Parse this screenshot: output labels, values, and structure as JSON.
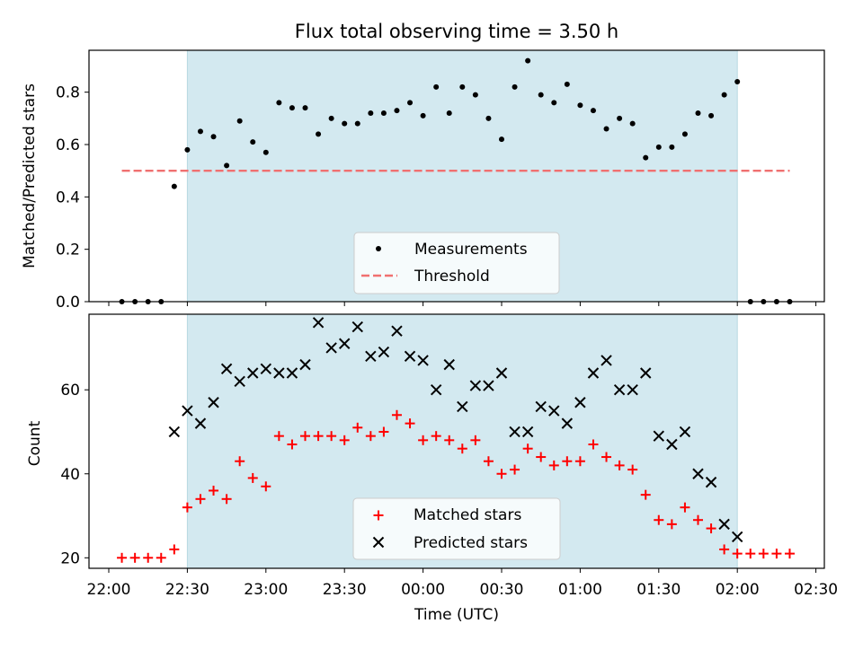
{
  "chart_data": [
    {
      "type": "scatter",
      "title": "Flux total observing time = 3.50 h",
      "xlabel": "",
      "ylabel": "Matched/Predicted stars",
      "ylim": [
        0,
        0.96
      ],
      "yticks": [
        "0.0",
        "0.2",
        "0.4",
        "0.6",
        "0.8"
      ],
      "shaded_span": [
        "22:30",
        "02:00"
      ],
      "shade_color": "#d3e9f0",
      "legend_position": "lower center",
      "series": [
        {
          "name": "Measurements",
          "marker": "dot",
          "color": "#000000",
          "x": [
            "22:05",
            "22:10",
            "22:15",
            "22:20",
            "22:25",
            "22:30",
            "22:35",
            "22:40",
            "22:45",
            "22:50",
            "22:55",
            "23:00",
            "23:05",
            "23:10",
            "23:15",
            "23:20",
            "23:25",
            "23:30",
            "23:35",
            "23:40",
            "23:45",
            "23:50",
            "23:55",
            "00:00",
            "00:05",
            "00:10",
            "00:15",
            "00:20",
            "00:25",
            "00:30",
            "00:35",
            "00:40",
            "00:45",
            "00:50",
            "00:55",
            "01:00",
            "01:05",
            "01:10",
            "01:15",
            "01:20",
            "01:25",
            "01:30",
            "01:35",
            "01:40",
            "01:45",
            "01:50",
            "01:55",
            "02:00",
            "02:05",
            "02:10",
            "02:15",
            "02:20"
          ],
          "y": [
            0,
            0,
            0,
            0,
            0.44,
            0.58,
            0.65,
            0.63,
            0.52,
            0.69,
            0.61,
            0.57,
            0.76,
            0.74,
            0.74,
            0.64,
            0.7,
            0.68,
            0.68,
            0.72,
            0.72,
            0.73,
            0.76,
            0.71,
            0.82,
            0.72,
            0.82,
            0.79,
            0.7,
            0.62,
            0.82,
            0.92,
            0.79,
            0.76,
            0.83,
            0.75,
            0.73,
            0.66,
            0.7,
            0.68,
            0.55,
            0.59,
            0.59,
            0.64,
            0.72,
            0.71,
            0.79,
            0.84,
            0,
            0,
            0,
            0
          ]
        },
        {
          "name": "Threshold",
          "style": "dashed",
          "color": "#f07070",
          "x": [
            "22:05",
            "02:20"
          ],
          "y": [
            0.5,
            0.5
          ]
        }
      ]
    },
    {
      "type": "scatter",
      "title": "",
      "xlabel": "Time (UTC)",
      "ylabel": "Count",
      "ylim": [
        17.5,
        78
      ],
      "yticks": [
        "20",
        "40",
        "60"
      ],
      "xticks": [
        "22:00",
        "22:30",
        "23:00",
        "23:30",
        "00:00",
        "00:30",
        "01:00",
        "01:30",
        "02:00",
        "02:30"
      ],
      "shaded_span": [
        "22:30",
        "02:00"
      ],
      "shade_color": "#d3e9f0",
      "legend_position": "lower center",
      "series": [
        {
          "name": "Matched stars",
          "marker": "plus",
          "color": "#ff0000",
          "x": [
            "22:05",
            "22:10",
            "22:15",
            "22:20",
            "22:25",
            "22:30",
            "22:35",
            "22:40",
            "22:45",
            "22:50",
            "22:55",
            "23:00",
            "23:05",
            "23:10",
            "23:15",
            "23:20",
            "23:25",
            "23:30",
            "23:35",
            "23:40",
            "23:45",
            "23:50",
            "23:55",
            "00:00",
            "00:05",
            "00:10",
            "00:15",
            "00:20",
            "00:25",
            "00:30",
            "00:35",
            "00:40",
            "00:45",
            "00:50",
            "00:55",
            "01:00",
            "01:05",
            "01:10",
            "01:15",
            "01:20",
            "01:25",
            "01:30",
            "01:35",
            "01:40",
            "01:45",
            "01:50",
            "01:55",
            "02:00",
            "02:05",
            "02:10",
            "02:15",
            "02:20"
          ],
          "y": [
            20,
            20,
            20,
            20,
            22,
            32,
            34,
            36,
            34,
            43,
            39,
            37,
            49,
            47,
            49,
            49,
            49,
            48,
            51,
            49,
            50,
            54,
            52,
            48,
            49,
            48,
            46,
            48,
            43,
            40,
            41,
            46,
            44,
            42,
            43,
            43,
            47,
            44,
            42,
            41,
            35,
            29,
            28,
            32,
            29,
            27,
            22,
            21,
            21,
            21,
            21,
            21
          ]
        },
        {
          "name": "Predicted stars",
          "marker": "x",
          "color": "#000000",
          "x": [
            "22:25",
            "22:30",
            "22:35",
            "22:40",
            "22:45",
            "22:50",
            "22:55",
            "23:00",
            "23:05",
            "23:10",
            "23:15",
            "23:20",
            "23:25",
            "23:30",
            "23:35",
            "23:40",
            "23:45",
            "23:50",
            "23:55",
            "00:00",
            "00:05",
            "00:10",
            "00:15",
            "00:20",
            "00:25",
            "00:30",
            "00:35",
            "00:40",
            "00:45",
            "00:50",
            "00:55",
            "01:00",
            "01:05",
            "01:10",
            "01:15",
            "01:20",
            "01:25",
            "01:30",
            "01:35",
            "01:40",
            "01:45",
            "01:50",
            "01:55",
            "02:00"
          ],
          "y": [
            50,
            55,
            52,
            57,
            65,
            62,
            64,
            65,
            64,
            64,
            66,
            76,
            70,
            71,
            75,
            68,
            69,
            74,
            68,
            67,
            60,
            66,
            56,
            61,
            61,
            64,
            50,
            50,
            56,
            55,
            52,
            57,
            64,
            67,
            60,
            60,
            64,
            49,
            47,
            50,
            40,
            38,
            28,
            25
          ]
        }
      ]
    }
  ]
}
